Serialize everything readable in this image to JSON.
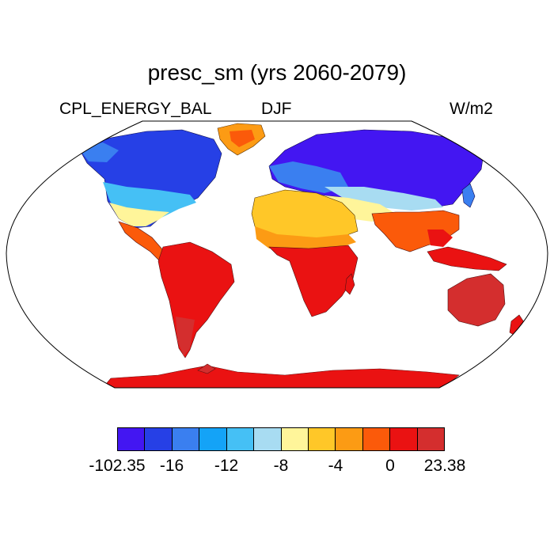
{
  "title": "presc_sm (yrs 2060-2079)",
  "left_label": "CPL_ENERGY_BAL",
  "center_label": "DJF",
  "right_label": "W/m2",
  "projection": "Robinson (global)",
  "colorbar": {
    "colors": [
      "#4316f2",
      "#2640e6",
      "#3a7ff0",
      "#14a3f7",
      "#45c0f5",
      "#a8dcf2",
      "#fff59a",
      "#ffc728",
      "#fc9b14",
      "#fb5a0a",
      "#ea1212",
      "#d42e2e"
    ],
    "labels": [
      "-102.35",
      "-16",
      "-12",
      "-8",
      "-4",
      "0",
      "23.38"
    ]
  },
  "regions": [
    {
      "name": "Greenland",
      "color": "#fc9b14"
    },
    {
      "name": "Canada",
      "color": "#2640e6"
    },
    {
      "name": "United States",
      "color": "#45c0f5"
    },
    {
      "name": "Mexico and Central America",
      "color": "#fb5a0a"
    },
    {
      "name": "South America",
      "color": "#ea1212"
    },
    {
      "name": "Europe",
      "color": "#3a7ff0"
    },
    {
      "name": "Siberia",
      "color": "#4316f2"
    },
    {
      "name": "Central Asia",
      "color": "#a8dcf2"
    },
    {
      "name": "Sahara",
      "color": "#ffc728"
    },
    {
      "name": "Southern Africa",
      "color": "#ea1212"
    },
    {
      "name": "India and Southeast Asia",
      "color": "#fb5a0a"
    },
    {
      "name": "Australia",
      "color": "#d42e2e"
    },
    {
      "name": "Antarctica",
      "color": "#ea1212"
    }
  ]
}
